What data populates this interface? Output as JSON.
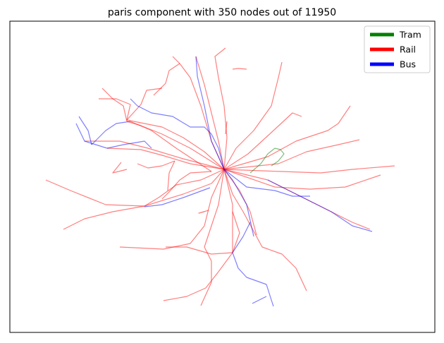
{
  "title": "paris component with 350 nodes out of 11950",
  "colors": {
    "tram": "#008000",
    "rail": "#ff0000",
    "bus": "#0000ff"
  },
  "legend": [
    {
      "key": "tram",
      "label": "Tram",
      "color": "#008000"
    },
    {
      "key": "rail",
      "label": "Rail",
      "color": "#ff0000"
    },
    {
      "key": "bus",
      "label": "Bus",
      "color": "#0000ff"
    }
  ],
  "network": {
    "rail": [
      [
        [
          318,
          240
        ],
        [
          300,
          200
        ],
        [
          285,
          150
        ],
        [
          270,
          110
        ],
        [
          255,
          90
        ],
        [
          245,
          80
        ]
      ],
      [
        [
          318,
          240
        ],
        [
          310,
          200
        ],
        [
          300,
          160
        ],
        [
          290,
          120
        ],
        [
          278,
          80
        ]
      ],
      [
        [
          318,
          240
        ],
        [
          322,
          195
        ],
        [
          318,
          150
        ],
        [
          310,
          110
        ],
        [
          305,
          80
        ],
        [
          320,
          68
        ]
      ],
      [
        [
          318,
          240
        ],
        [
          335,
          210
        ],
        [
          360,
          185
        ],
        [
          385,
          150
        ],
        [
          395,
          110
        ],
        [
          400,
          88
        ]
      ],
      [
        [
          318,
          240
        ],
        [
          352,
          218
        ],
        [
          388,
          185
        ],
        [
          415,
          160
        ],
        [
          428,
          165
        ]
      ],
      [
        [
          318,
          240
        ],
        [
          380,
          222
        ],
        [
          420,
          200
        ],
        [
          465,
          185
        ],
        [
          480,
          175
        ],
        [
          497,
          150
        ]
      ],
      [
        [
          318,
          240
        ],
        [
          395,
          232
        ],
        [
          435,
          215
        ],
        [
          480,
          205
        ],
        [
          510,
          198
        ]
      ],
      [
        [
          318,
          240
        ],
        [
          400,
          243
        ],
        [
          455,
          245
        ],
        [
          500,
          240
        ],
        [
          560,
          235
        ]
      ],
      [
        [
          318,
          240
        ],
        [
          390,
          265
        ],
        [
          440,
          268
        ],
        [
          490,
          265
        ],
        [
          540,
          248
        ]
      ],
      [
        [
          318,
          240
        ],
        [
          380,
          255
        ],
        [
          450,
          290
        ],
        [
          500,
          315
        ],
        [
          525,
          325
        ]
      ],
      [
        [
          318,
          240
        ],
        [
          340,
          270
        ],
        [
          355,
          300
        ],
        [
          364,
          333
        ]
      ],
      [
        [
          318,
          240
        ],
        [
          330,
          290
        ],
        [
          330,
          330
        ],
        [
          330,
          358
        ]
      ],
      [
        [
          318,
          240
        ],
        [
          330,
          275
        ],
        [
          345,
          300
        ],
        [
          372,
          350
        ],
        [
          400,
          360
        ],
        [
          420,
          380
        ],
        [
          435,
          412
        ]
      ],
      [
        [
          318,
          240
        ],
        [
          300,
          280
        ],
        [
          290,
          320
        ],
        [
          270,
          345
        ],
        [
          232,
          353
        ],
        [
          170,
          350
        ]
      ],
      [
        [
          318,
          240
        ],
        [
          310,
          290
        ],
        [
          300,
          320
        ],
        [
          290,
          350
        ],
        [
          300,
          370
        ],
        [
          300,
          400
        ],
        [
          285,
          433
        ]
      ],
      [
        [
          318,
          240
        ],
        [
          300,
          260
        ],
        [
          260,
          275
        ],
        [
          205,
          292
        ],
        [
          150,
          290
        ],
        [
          100,
          270
        ],
        [
          65,
          255
        ]
      ],
      [
        [
          318,
          240
        ],
        [
          285,
          255
        ],
        [
          250,
          262
        ],
        [
          225,
          280
        ],
        [
          205,
          292
        ],
        [
          160,
          300
        ],
        [
          120,
          310
        ],
        [
          90,
          325
        ]
      ],
      [
        [
          318,
          240
        ],
        [
          270,
          232
        ],
        [
          230,
          220
        ],
        [
          200,
          212
        ],
        [
          152,
          210
        ]
      ],
      [
        [
          318,
          240
        ],
        [
          260,
          225
        ],
        [
          210,
          210
        ],
        [
          170,
          200
        ],
        [
          120,
          200
        ]
      ],
      [
        [
          318,
          240
        ],
        [
          270,
          210
        ],
        [
          230,
          190
        ],
        [
          200,
          178
        ],
        [
          180,
          172
        ]
      ],
      [
        [
          318,
          240
        ],
        [
          290,
          215
        ],
        [
          260,
          195
        ],
        [
          230,
          180
        ],
        [
          180,
          170
        ],
        [
          185,
          148
        ],
        [
          165,
          140
        ],
        [
          140,
          140
        ]
      ],
      [
        [
          300,
          243
        ],
        [
          250,
          210
        ],
        [
          215,
          185
        ],
        [
          185,
          172
        ]
      ],
      [
        [
          330,
          358
        ],
        [
          300,
          360
        ],
        [
          265,
          350
        ],
        [
          235,
          350
        ]
      ],
      [
        [
          330,
          358
        ],
        [
          340,
          330
        ],
        [
          330,
          300
        ]
      ],
      [
        [
          330,
          358
        ],
        [
          310,
          385
        ],
        [
          292,
          408
        ],
        [
          265,
          420
        ],
        [
          232,
          426
        ]
      ],
      [
        [
          180,
          170
        ],
        [
          200,
          148
        ],
        [
          208,
          128
        ],
        [
          230,
          125
        ]
      ],
      [
        [
          180,
          172
        ],
        [
          175,
          150
        ],
        [
          160,
          140
        ],
        [
          145,
          125
        ]
      ],
      [
        [
          255,
          90
        ],
        [
          240,
          100
        ],
        [
          235,
          118
        ],
        [
          218,
          135
        ]
      ],
      [
        [
          195,
          232
        ],
        [
          210,
          238
        ],
        [
          230,
          235
        ],
        [
          248,
          228
        ]
      ],
      [
        [
          248,
          228
        ],
        [
          240,
          245
        ],
        [
          238,
          270
        ]
      ],
      [
        [
          300,
          243
        ],
        [
          270,
          245
        ],
        [
          255,
          255
        ],
        [
          240,
          272
        ],
        [
          230,
          282
        ]
      ],
      [
        [
          330,
          98
        ],
        [
          338,
          97
        ],
        [
          350,
          98
        ]
      ],
      [
        [
          320,
          190
        ],
        [
          322,
          172
        ]
      ],
      [
        [
          172,
          230
        ],
        [
          160,
          245
        ],
        [
          180,
          240
        ]
      ],
      [
        [
          290,
          300
        ],
        [
          282,
          302
        ],
        [
          296,
          298
        ]
      ]
    ],
    "bus": [
      [
        [
          318,
          240
        ],
        [
          310,
          210
        ],
        [
          300,
          190
        ],
        [
          290,
          180
        ],
        [
          270,
          180
        ],
        [
          245,
          165
        ],
        [
          215,
          160
        ],
        [
          195,
          150
        ],
        [
          185,
          140
        ]
      ],
      [
        [
          318,
          240
        ],
        [
          300,
          200
        ],
        [
          290,
          150
        ],
        [
          280,
          108
        ],
        [
          278,
          80
        ]
      ],
      [
        [
          318,
          240
        ],
        [
          330,
          255
        ],
        [
          350,
          290
        ],
        [
          360,
          335
        ]
      ],
      [
        [
          318,
          240
        ],
        [
          350,
          265
        ],
        [
          390,
          270
        ],
        [
          415,
          278
        ],
        [
          440,
          278
        ]
      ],
      [
        [
          380,
          255
        ],
        [
          430,
          280
        ],
        [
          470,
          300
        ],
        [
          500,
          320
        ],
        [
          528,
          328
        ]
      ],
      [
        [
          330,
          358
        ],
        [
          345,
          335
        ],
        [
          355,
          315
        ]
      ],
      [
        [
          330,
          358
        ],
        [
          338,
          380
        ],
        [
          350,
          393
        ],
        [
          378,
          403
        ]
      ],
      [
        [
          378,
          403
        ],
        [
          385,
          425
        ],
        [
          388,
          434
        ]
      ],
      [
        [
          378,
          420
        ],
        [
          358,
          430
        ]
      ],
      [
        [
          298,
          266
        ],
        [
          260,
          280
        ],
        [
          230,
          290
        ],
        [
          205,
          293
        ]
      ],
      [
        [
          152,
          210
        ],
        [
          120,
          200
        ],
        [
          108,
          175
        ]
      ],
      [
        [
          130,
          205
        ],
        [
          125,
          185
        ],
        [
          112,
          165
        ]
      ],
      [
        [
          185,
          172
        ],
        [
          165,
          175
        ],
        [
          150,
          185
        ],
        [
          130,
          205
        ]
      ],
      [
        [
          152,
          210
        ],
        [
          175,
          205
        ],
        [
          205,
          200
        ],
        [
          215,
          210
        ]
      ]
    ],
    "tram": [
      [
        [
          385,
          235
        ],
        [
          395,
          228
        ],
        [
          403,
          218
        ],
        [
          398,
          212
        ],
        [
          390,
          210
        ]
      ],
      [
        [
          390,
          210
        ],
        [
          380,
          218
        ],
        [
          370,
          232
        ],
        [
          355,
          245
        ]
      ]
    ]
  }
}
